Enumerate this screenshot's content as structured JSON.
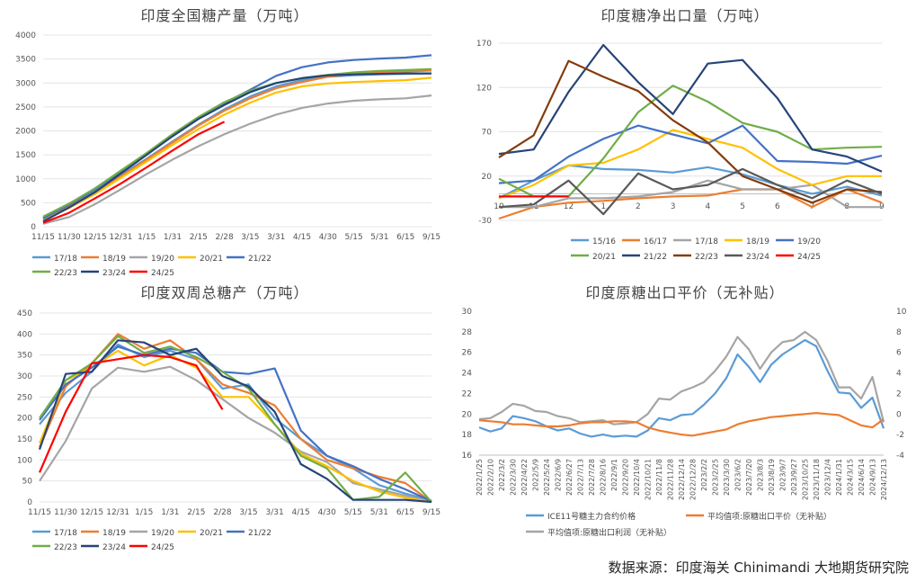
{
  "chart_data": [
    {
      "id": "c1",
      "type": "line",
      "title": "印度全国糖产量（万吨）",
      "categories": [
        "11/15",
        "11/30",
        "12/15",
        "12/31",
        "1/15",
        "1/31",
        "2/15",
        "2/28",
        "3/15",
        "3/31",
        "4/15",
        "4/30",
        "5/15",
        "5/31",
        "6/15",
        "9/15"
      ],
      "ylim": [
        0,
        4000
      ],
      "yticks": [
        0,
        500,
        1000,
        1500,
        2000,
        2500,
        3000,
        3500,
        4000
      ],
      "legend_rows": [
        [
          "17/18",
          "18/19",
          "19/20",
          "20/21",
          "21/22"
        ],
        [
          "22/23",
          "23/24",
          "24/25"
        ]
      ],
      "series": [
        {
          "name": "17/18",
          "color": "#5b9bd5",
          "values": [
            180,
            440,
            730,
            1080,
            1420,
            1780,
            2130,
            2450,
            2720,
            2930,
            3060,
            3130,
            3160,
            3180,
            3190,
            3200
          ]
        },
        {
          "name": "18/19",
          "color": "#ed7d31",
          "values": [
            160,
            420,
            710,
            1050,
            1400,
            1760,
            2110,
            2420,
            2680,
            2890,
            3020,
            3130,
            3190,
            3220,
            3240,
            3260
          ]
        },
        {
          "name": "19/20",
          "color": "#a5a5a5",
          "values": [
            60,
            200,
            470,
            780,
            1100,
            1400,
            1680,
            1930,
            2150,
            2340,
            2480,
            2570,
            2630,
            2660,
            2680,
            2740
          ]
        },
        {
          "name": "20/21",
          "color": "#ffc000",
          "values": [
            140,
            390,
            680,
            1020,
            1360,
            1710,
            2040,
            2340,
            2590,
            2800,
            2930,
            2990,
            3020,
            3040,
            3060,
            3110
          ]
        },
        {
          "name": "21/22",
          "color": "#4472c4",
          "values": [
            170,
            460,
            780,
            1150,
            1520,
            1900,
            2260,
            2580,
            2860,
            3150,
            3330,
            3430,
            3480,
            3510,
            3530,
            3580
          ]
        },
        {
          "name": "22/23",
          "color": "#70ad47",
          "values": [
            210,
            480,
            800,
            1170,
            1540,
            1930,
            2290,
            2600,
            2840,
            3000,
            3100,
            3170,
            3220,
            3250,
            3270,
            3290
          ]
        },
        {
          "name": "23/24",
          "color": "#264478",
          "values": [
            110,
            400,
            720,
            1110,
            1500,
            1890,
            2250,
            2540,
            2810,
            3000,
            3100,
            3160,
            3180,
            3190,
            3200,
            3200
          ]
        },
        {
          "name": "24/25",
          "color": "#ff0000",
          "values": [
            80,
            290,
            590,
            900,
            1240,
            1590,
            1930,
            2190,
            null,
            null,
            null,
            null,
            null,
            null,
            null,
            null
          ]
        }
      ]
    },
    {
      "id": "c2",
      "type": "line",
      "title": "印度糖净出口量（万吨）",
      "categories": [
        "10",
        "11",
        "12",
        "1",
        "2",
        "3",
        "4",
        "5",
        "6",
        "7",
        "8",
        "9"
      ],
      "ylim": [
        -30,
        170
      ],
      "yticks": [
        -30,
        20,
        70,
        120,
        170
      ],
      "legend_rows": [
        [
          "15/16",
          "16/17",
          "17/18",
          "18/19",
          "19/20"
        ],
        [
          "20/21",
          "21/22",
          "22/23",
          "23/24",
          "24/25"
        ]
      ],
      "series": [
        {
          "name": "15/16",
          "color": "#5b9bd5",
          "values": [
            -5,
            15,
            32,
            28,
            27,
            24,
            30,
            22,
            10,
            0,
            8,
            -2
          ]
        },
        {
          "name": "16/17",
          "color": "#ed7d31",
          "values": [
            -28,
            -15,
            -10,
            -8,
            -5,
            -3,
            -2,
            5,
            5,
            -15,
            5,
            -10
          ]
        },
        {
          "name": "17/18",
          "color": "#a5a5a5",
          "values": [
            -15,
            -15,
            -5,
            -5,
            -3,
            2,
            15,
            5,
            5,
            10,
            -15,
            -15
          ]
        },
        {
          "name": "18/19",
          "color": "#ffc000",
          "values": [
            -5,
            10,
            32,
            35,
            50,
            72,
            62,
            52,
            28,
            10,
            20,
            20
          ]
        },
        {
          "name": "19/20",
          "color": "#4472c4",
          "values": [
            12,
            15,
            42,
            62,
            77,
            67,
            57,
            77,
            37,
            36,
            34,
            43
          ]
        },
        {
          "name": "20/21",
          "color": "#70ad47",
          "values": [
            17,
            -3,
            -3,
            40,
            92,
            122,
            104,
            80,
            70,
            50,
            52,
            53
          ]
        },
        {
          "name": "21/22",
          "color": "#264478",
          "values": [
            45,
            50,
            115,
            168,
            126,
            90,
            147,
            151,
            108,
            50,
            42,
            25
          ]
        },
        {
          "name": "22/23",
          "color": "#843c0c",
          "values": [
            41,
            66,
            150,
            132,
            116,
            83,
            58,
            20,
            5,
            -10,
            5,
            2
          ]
        },
        {
          "name": "23/24",
          "color": "#595959",
          "values": [
            -15,
            -12,
            15,
            -23,
            23,
            5,
            10,
            28,
            10,
            -5,
            15,
            0
          ]
        },
        {
          "name": "24/25",
          "color": "#ff0000",
          "values": [
            -3,
            -3,
            -3,
            null,
            null,
            null,
            null,
            null,
            null,
            null,
            null,
            null
          ]
        }
      ]
    },
    {
      "id": "c3",
      "type": "line",
      "title": "印度双周总糖产（万吨）",
      "categories": [
        "11/15",
        "11/30",
        "12/15",
        "12/31",
        "1/15",
        "1/31",
        "2/15",
        "2/28",
        "3/15",
        "3/31",
        "4/15",
        "4/30",
        "5/15",
        "5/31",
        "6/15",
        "9/15"
      ],
      "ylim": [
        0,
        450
      ],
      "yticks": [
        0,
        50,
        100,
        150,
        200,
        250,
        300,
        350,
        400,
        450
      ],
      "legend_rows": [
        [
          "17/18",
          "18/19",
          "19/20",
          "20/21",
          "21/22"
        ],
        [
          "22/23",
          "23/24",
          "24/25"
        ]
      ],
      "series": [
        {
          "name": "17/18",
          "color": "#5b9bd5",
          "values": [
            185,
            260,
            310,
            375,
            345,
            360,
            340,
            270,
            280,
            200,
            150,
            110,
            80,
            40,
            20,
            3
          ]
        },
        {
          "name": "18/19",
          "color": "#ed7d31",
          "values": [
            130,
            275,
            330,
            400,
            365,
            385,
            340,
            280,
            260,
            230,
            150,
            100,
            80,
            60,
            45,
            0
          ]
        },
        {
          "name": "19/20",
          "color": "#a5a5a5",
          "values": [
            50,
            145,
            270,
            320,
            310,
            322,
            290,
            245,
            200,
            165,
            120,
            95,
            45,
            30,
            15,
            0
          ]
        },
        {
          "name": "20/21",
          "color": "#ffc000",
          "values": [
            140,
            290,
            320,
            360,
            325,
            350,
            320,
            250,
            250,
            185,
            115,
            85,
            50,
            25,
            10,
            0
          ]
        },
        {
          "name": "21/22",
          "color": "#4472c4",
          "values": [
            195,
            280,
            320,
            370,
            350,
            365,
            355,
            310,
            305,
            318,
            170,
            110,
            85,
            55,
            30,
            2
          ]
        },
        {
          "name": "22/23",
          "color": "#70ad47",
          "values": [
            200,
            290,
            330,
            395,
            355,
            370,
            345,
            310,
            270,
            185,
            110,
            80,
            5,
            12,
            70,
            0
          ]
        },
        {
          "name": "23/24",
          "color": "#264478",
          "values": [
            125,
            305,
            310,
            385,
            380,
            350,
            365,
            300,
            275,
            215,
            90,
            55,
            5,
            5,
            5,
            0
          ]
        },
        {
          "name": "24/25",
          "color": "#ff0000",
          "values": [
            70,
            215,
            330,
            340,
            350,
            345,
            325,
            220,
            null,
            null,
            null,
            null,
            null,
            null,
            null,
            null
          ]
        }
      ]
    },
    {
      "id": "c4",
      "type": "line",
      "title": "印度原糖出口平价（无补贴）",
      "x_labels": [
        "2022/1/25",
        "2022/2/10",
        "2022/3/2",
        "2022/3/30",
        "2022/4/22",
        "2022/5/9",
        "2022/5/24",
        "2022/6/9",
        "2022/6/27",
        "2022/7/13",
        "2022/7/28",
        "2022/8/16",
        "2022/9/1",
        "2022/9/20",
        "2022/10/4",
        "2022/10/21",
        "2022/11/8",
        "2022/11/28",
        "2022/12/14",
        "2022/12/28",
        "2023/2/2",
        "2023/2/25",
        "2023/3/30",
        "2023/6/2",
        "2023/7/20",
        "2023/8/3",
        "2023/8/19",
        "2023/9/7",
        "2023/9/27",
        "2023/10/25",
        "2023/11/18",
        "2023/12/4",
        "2024/1/31",
        "2024/3/15",
        "2024/6/14",
        "2024/9/13",
        "2024/12/13"
      ],
      "ylim_left": [
        16,
        30
      ],
      "yticks_left": [
        16,
        18,
        20,
        22,
        24,
        26,
        28,
        30
      ],
      "ylim_right": [
        -4,
        10
      ],
      "yticks_right": [
        -4,
        -2,
        0,
        2,
        4,
        6,
        8,
        10
      ],
      "legend": [
        "ICE11号糖主力合约价格",
        "平均值项:原糖出口平价（无补贴）",
        "平均值项:原糖出口利润（无补贴）"
      ],
      "series": [
        {
          "name": "ICE11号糖主力合约价格",
          "color": "#5b9bd5",
          "axis": "left",
          "values": [
            18.7,
            18.3,
            18.6,
            19.8,
            19.6,
            19.3,
            18.8,
            18.4,
            18.6,
            18.1,
            17.8,
            18.0,
            17.8,
            17.9,
            17.8,
            18.4,
            19.6,
            19.4,
            19.9,
            20.0,
            20.9,
            22.0,
            23.5,
            25.8,
            24.6,
            23.1,
            24.8,
            25.8,
            26.5,
            27.2,
            26.6,
            24.2,
            22.1,
            22.0,
            20.6,
            21.6,
            18.6
          ]
        },
        {
          "name": "平均值项:原糖出口平价（无补贴）",
          "color": "#ed7d31",
          "axis": "left",
          "values": [
            19.4,
            19.3,
            19.2,
            19.0,
            19.0,
            18.9,
            18.8,
            18.8,
            18.9,
            19.1,
            19.2,
            19.2,
            19.3,
            19.3,
            19.2,
            18.7,
            18.4,
            18.2,
            18.0,
            17.9,
            18.1,
            18.3,
            18.5,
            19.0,
            19.3,
            19.5,
            19.7,
            19.8,
            19.9,
            20.0,
            20.1,
            20.0,
            19.9,
            19.4,
            18.9,
            18.7,
            19.5
          ]
        },
        {
          "name": "平均值项:原糖出口利润（无补贴）",
          "color": "#a5a5a5",
          "axis": "right",
          "values": [
            -0.5,
            -0.4,
            0.2,
            1.0,
            0.8,
            0.3,
            0.2,
            -0.2,
            -0.4,
            -0.8,
            -0.7,
            -0.6,
            -1.0,
            -0.9,
            -0.8,
            0.0,
            1.5,
            1.4,
            2.2,
            2.6,
            3.1,
            4.2,
            5.6,
            7.5,
            6.3,
            4.4,
            6.0,
            7.0,
            7.2,
            8.0,
            7.2,
            5.2,
            2.6,
            2.6,
            1.5,
            3.6,
            -0.8
          ]
        }
      ]
    }
  ],
  "source": "数据来源：印度海关  Chinimandi  大地期货研究院"
}
